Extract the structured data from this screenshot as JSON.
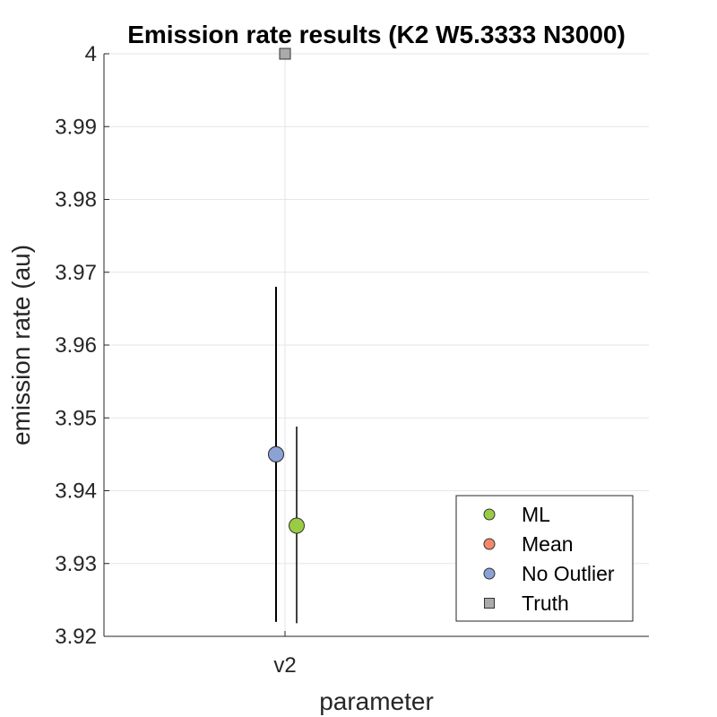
{
  "chart_data": {
    "type": "scatter",
    "title": "Emission rate results (K2 W5.3333 N3000)",
    "xlabel": "parameter",
    "ylabel": "emission rate (au)",
    "categories": [
      "v2"
    ],
    "ylim": [
      3.92,
      4.0
    ],
    "yticks": [
      3.92,
      3.93,
      3.94,
      3.95,
      3.96,
      3.97,
      3.98,
      3.99,
      4
    ],
    "ytick_labels": [
      "3.92",
      "3.93",
      "3.94",
      "3.95",
      "3.96",
      "3.97",
      "3.98",
      "3.99",
      "4"
    ],
    "grid": true,
    "legend_position": "bottom-right",
    "series": [
      {
        "name": "ML",
        "marker": "circle",
        "color": "#99cc44",
        "category": "v2",
        "value": 3.9352,
        "err_low": 3.9218,
        "err_high": 3.9488
      },
      {
        "name": "Mean",
        "marker": "circle",
        "color": "#f4886a",
        "category": "v2",
        "value": 3.945,
        "err_low": 3.922,
        "err_high": 3.968
      },
      {
        "name": "No Outlier",
        "marker": "circle",
        "color": "#8aa2d4",
        "category": "v2",
        "value": 3.945,
        "err_low": 3.922,
        "err_high": 3.968
      },
      {
        "name": "Truth",
        "marker": "square",
        "color": "#aaaaaa",
        "category": "v2",
        "value": 4.0
      }
    ]
  }
}
